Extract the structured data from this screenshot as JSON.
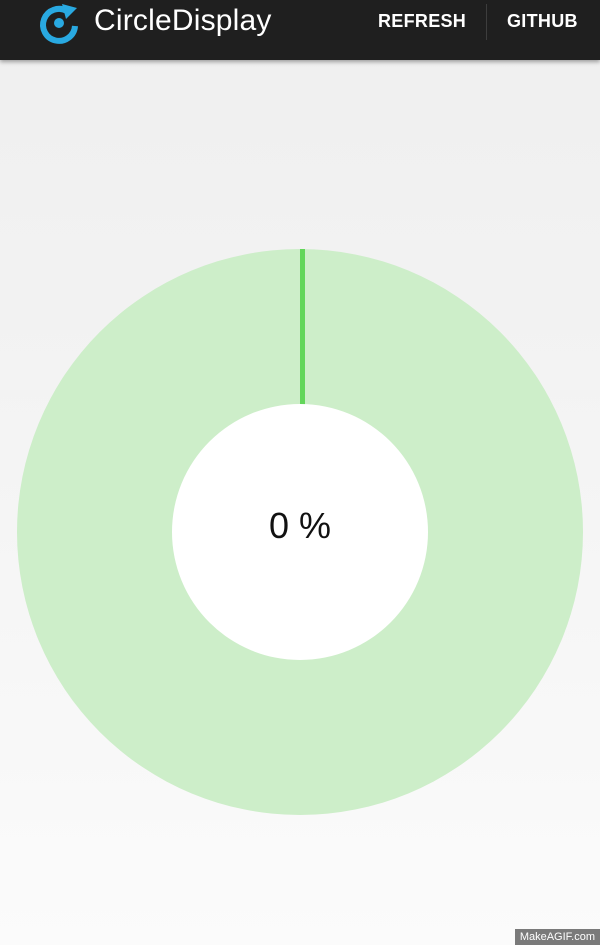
{
  "action_bar": {
    "title": "CircleDisplay",
    "actions": [
      {
        "label": "REFRESH"
      },
      {
        "label": "GITHUB"
      }
    ],
    "icon": "circle-refresh-icon",
    "background": "#1f1f1f",
    "icon_color": "#29a9e1"
  },
  "circle_display": {
    "value": 0,
    "max": 100,
    "label": "0 %",
    "fill_color": "#62d65a",
    "track_color": "#cdeec9",
    "inner_color": "#ffffff"
  },
  "watermark": {
    "text": "MakeAGIF.com"
  }
}
